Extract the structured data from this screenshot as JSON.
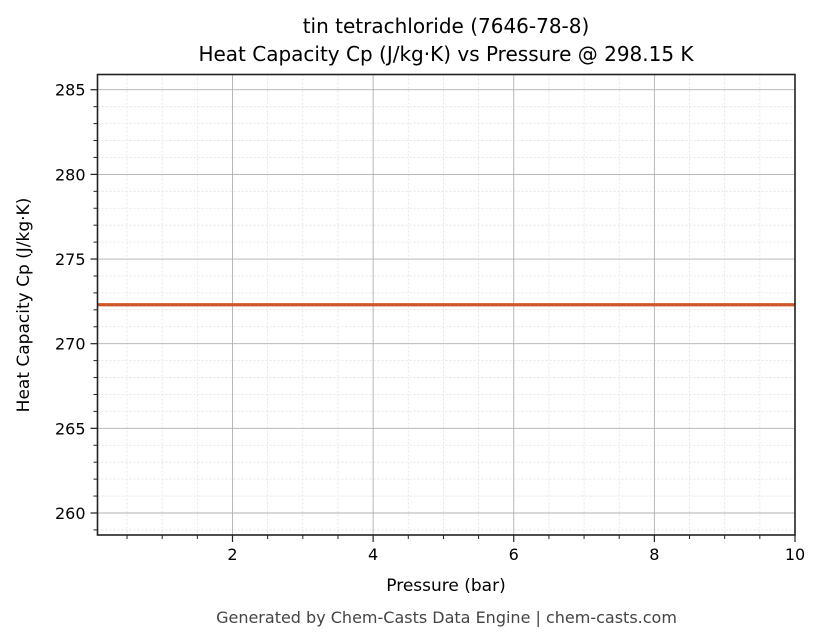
{
  "header": {
    "title_line1": "tin tetrachloride (7646-78-8)",
    "title_line2": "Heat Capacity Cp (J/kg·K) vs Pressure @ 298.15 K"
  },
  "axes": {
    "xlabel": "Pressure (bar)",
    "ylabel": "Heat Capacity Cp (J/kg·K)",
    "xticks": [
      "2",
      "4",
      "6",
      "8",
      "10"
    ],
    "yticks": [
      "260",
      "265",
      "270",
      "275",
      "280",
      "285"
    ]
  },
  "footer": {
    "text": "Generated by Chem-Casts Data Engine | chem-casts.com"
  },
  "colors": {
    "line": "#d0562a",
    "grid_major": "#b0b0b0",
    "grid_minor": "#e0e0e0",
    "axis": "#222222"
  },
  "chart_data": {
    "type": "line",
    "title": "tin tetrachloride (7646-78-8)\nHeat Capacity Cp (J/kg·K) vs Pressure @ 298.15 K",
    "xlabel": "Pressure (bar)",
    "ylabel": "Heat Capacity Cp (J/kg·K)",
    "xlim": [
      0.08,
      10
    ],
    "ylim": [
      258.7,
      285.9
    ],
    "grid": true,
    "minor_grid": true,
    "legend": null,
    "series": [
      {
        "name": "Cp",
        "x": [
          0.08,
          1,
          2,
          3,
          4,
          5,
          6,
          7,
          8,
          9,
          10
        ],
        "values": [
          272.3,
          272.3,
          272.3,
          272.3,
          272.3,
          272.3,
          272.3,
          272.3,
          272.3,
          272.3,
          272.3
        ],
        "color": "#d0562a"
      }
    ]
  }
}
